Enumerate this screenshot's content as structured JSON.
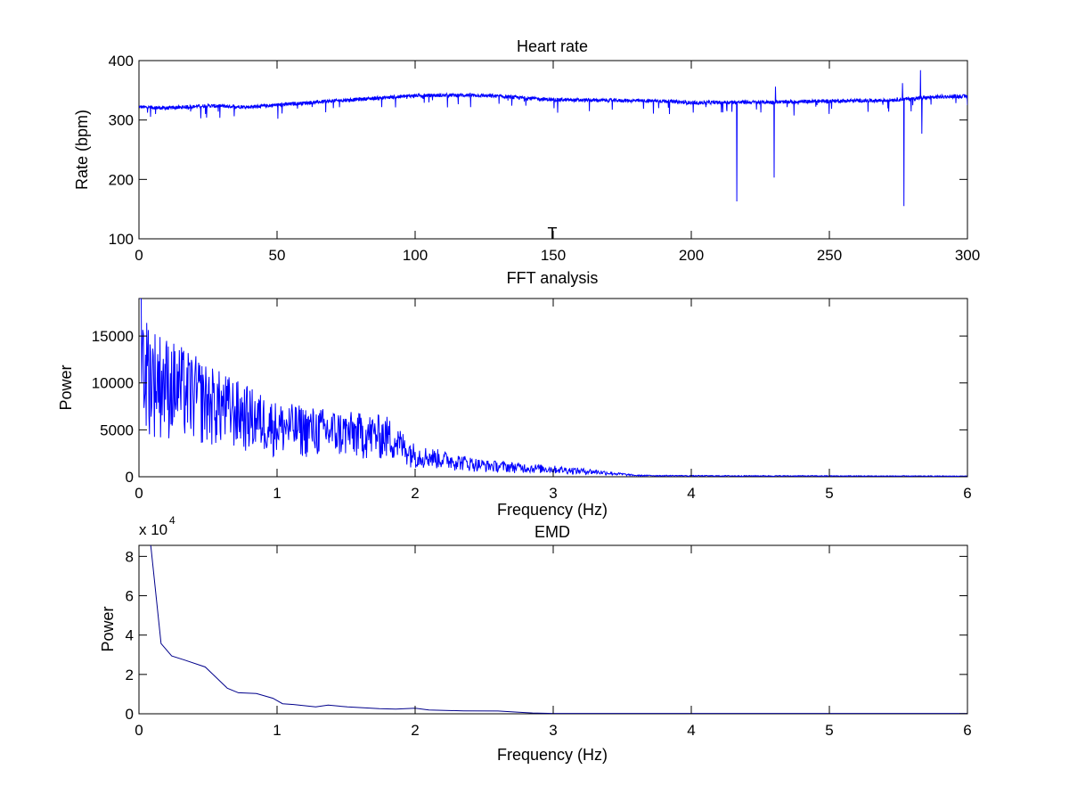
{
  "chart_data": [
    {
      "type": "line",
      "title": "Heart rate",
      "xlabel": "T",
      "ylabel": "Rate (bpm)",
      "xlim": [
        0,
        300
      ],
      "ylim": [
        100,
        400
      ],
      "xticks": [
        0,
        50,
        100,
        150,
        200,
        250,
        300
      ],
      "yticks": [
        100,
        200,
        300,
        400
      ],
      "color": "#0000ff",
      "baseline": {
        "x": [
          0,
          10,
          25,
          40,
          55,
          70,
          90,
          100,
          120,
          130,
          150,
          170,
          190,
          200,
          215,
          230,
          250,
          270,
          290,
          300
        ],
        "y": [
          322,
          320,
          324,
          322,
          327,
          332,
          338,
          341,
          342,
          340,
          334,
          333,
          332,
          329,
          330,
          330,
          332,
          333,
          339,
          340
        ]
      },
      "spikes": [
        {
          "x": 216.5,
          "y": 163
        },
        {
          "x": 230,
          "y": 203
        },
        {
          "x": 230.5,
          "y": 356
        },
        {
          "x": 277,
          "y": 155
        },
        {
          "x": 276.5,
          "y": 362
        },
        {
          "x": 283,
          "y": 384
        },
        {
          "x": 283.5,
          "y": 277
        }
      ]
    },
    {
      "type": "line",
      "title": "FFT analysis",
      "xlabel": "Frequency (Hz)",
      "ylabel": "Power",
      "xlim": [
        0,
        6
      ],
      "ylim": [
        0,
        19000
      ],
      "xticks": [
        0,
        1,
        2,
        3,
        4,
        5,
        6
      ],
      "yticks": [
        0,
        5000,
        10000,
        15000
      ],
      "color": "#0000ff",
      "envelope": {
        "x": [
          0,
          0.1,
          0.5,
          1,
          1.5,
          1.8,
          2,
          2.5,
          3,
          3.3,
          3.6,
          4,
          6
        ],
        "y": [
          19000,
          16000,
          12000,
          8000,
          7000,
          6500,
          3500,
          1800,
          1200,
          800,
          200,
          150,
          100
        ]
      }
    },
    {
      "type": "line",
      "title": "EMD",
      "xlabel": "Frequency (Hz)",
      "ylabel": "Power",
      "y_multiplier": "x 10",
      "y_exponent": "4",
      "xlim": [
        0,
        6
      ],
      "ylim": [
        0,
        8.56
      ],
      "xticks": [
        0,
        1,
        2,
        3,
        4,
        5,
        6
      ],
      "yticks": [
        0,
        2,
        4,
        6,
        8
      ],
      "color": "#00008b",
      "x": [
        0.07,
        0.089,
        0.16,
        0.237,
        0.33,
        0.48,
        0.64,
        0.72,
        0.85,
        0.97,
        1.04,
        1.12,
        1.28,
        1.37,
        1.51,
        1.74,
        1.86,
        2.0,
        2.1,
        2.35,
        2.6,
        2.75,
        2.85,
        3.0,
        4.0,
        5.0,
        6.0
      ],
      "y": [
        9.5,
        8.32,
        3.57,
        2.94,
        2.73,
        2.38,
        1.3,
        1.07,
        1.03,
        0.79,
        0.51,
        0.47,
        0.35,
        0.44,
        0.35,
        0.26,
        0.24,
        0.28,
        0.19,
        0.15,
        0.14,
        0.08,
        0.04,
        0.02,
        0.02,
        0.02,
        0.02
      ]
    }
  ]
}
